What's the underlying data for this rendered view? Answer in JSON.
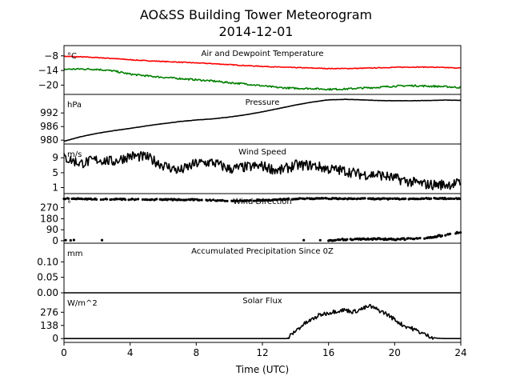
{
  "title_line1": "AO&SS Building Tower Meteorogram",
  "title_line2": "2014-12-01",
  "xlabel": "Time (UTC)",
  "chart_data": {
    "type": "line",
    "x_range": [
      0,
      24
    ],
    "x_ticks": [
      0,
      4,
      8,
      12,
      16,
      20,
      24
    ],
    "x_tick_labels": [
      "0",
      "4",
      "8",
      "12",
      "16",
      "20",
      "24"
    ],
    "panels": [
      {
        "id": "temp",
        "title": "Air and Dewpoint Temperature",
        "unit": "°C",
        "ylim": [
          -23.8,
          -3.8
        ],
        "yticks": [
          -8,
          -14,
          -20
        ],
        "ytick_labels": [
          "−8",
          "−14",
          "−20"
        ],
        "series": [
          {
            "color": "#ff0000",
            "type": "line",
            "noise": 0.15,
            "x": [
              0,
              1,
              2,
              3,
              4,
              5,
              6,
              7,
              8,
              9,
              10,
              11,
              12,
              13,
              14,
              15,
              16,
              17,
              18,
              19,
              20,
              21,
              22,
              23,
              24
            ],
            "y": [
              -8.2,
              -8.4,
              -8.7,
              -9.1,
              -9.6,
              -10.0,
              -10.3,
              -10.6,
              -10.9,
              -11.2,
              -11.6,
              -12.0,
              -12.3,
              -12.6,
              -12.8,
              -13.0,
              -13.2,
              -13.2,
              -13.1,
              -12.9,
              -12.7,
              -12.6,
              -12.6,
              -12.8,
              -13.0
            ]
          },
          {
            "color": "#008000",
            "type": "line",
            "noise": 0.35,
            "x": [
              0,
              1,
              2,
              3,
              4,
              5,
              6,
              7,
              8,
              9,
              10,
              11,
              12,
              13,
              14,
              15,
              16,
              17,
              18,
              19,
              20,
              21,
              22,
              23,
              24
            ],
            "y": [
              -13.5,
              -13.4,
              -13.5,
              -14.2,
              -15.5,
              -16.2,
              -16.8,
              -17.3,
              -17.8,
              -18.3,
              -19.0,
              -19.5,
              -20.3,
              -21.0,
              -21.3,
              -21.4,
              -21.7,
              -21.6,
              -21.2,
              -20.9,
              -20.4,
              -20.2,
              -20.4,
              -20.6,
              -21.0
            ]
          }
        ]
      },
      {
        "id": "pres",
        "title": "Pressure",
        "unit": "hPa",
        "ylim": [
          978.3,
          1000.2
        ],
        "yticks": [
          980,
          986,
          992
        ],
        "ytick_labels": [
          "980",
          "986",
          "992"
        ],
        "series": [
          {
            "color": "#000000",
            "type": "line",
            "noise": 0.05,
            "x": [
              0,
              1,
              2,
              3,
              4,
              5,
              6,
              7,
              8,
              9,
              10,
              11,
              12,
              13,
              14,
              15,
              16,
              17,
              18,
              19,
              20,
              21,
              22,
              23,
              24
            ],
            "y": [
              979.5,
              981.5,
              983.0,
              984.2,
              985.2,
              986.3,
              987.3,
              988.2,
              988.9,
              989.4,
              990.2,
              991.2,
              992.5,
              994.0,
              995.5,
              996.8,
              997.8,
              998.0,
              997.8,
              997.5,
              997.4,
              997.4,
              997.5,
              997.7,
              997.6
            ]
          }
        ]
      },
      {
        "id": "wspd",
        "title": "Wind Speed",
        "unit": "m/s",
        "ylim": [
          -0.6,
          12.7
        ],
        "yticks": [
          1,
          5,
          9
        ],
        "ytick_labels": [
          "1",
          "5",
          "9"
        ],
        "series": [
          {
            "color": "#000000",
            "type": "line",
            "noise": 1.4,
            "x": [
              0,
              1,
              2,
              3,
              4,
              5,
              6,
              7,
              8,
              9,
              10,
              11,
              12,
              13,
              14,
              15,
              16,
              17,
              18,
              19,
              20,
              21,
              22,
              23,
              24
            ],
            "y": [
              9.0,
              7.5,
              8.5,
              8.0,
              9.5,
              9.2,
              7.0,
              5.5,
              7.5,
              7.8,
              6.0,
              6.5,
              6.8,
              5.5,
              7.0,
              7.0,
              6.0,
              5.5,
              4.5,
              4.5,
              3.5,
              2.5,
              1.8,
              1.8,
              2.2
            ]
          }
        ]
      },
      {
        "id": "wdir",
        "title": "Wind Direction",
        "unit": "°",
        "ylim": [
          -20,
          385
        ],
        "yticks": [
          0,
          90,
          180,
          270
        ],
        "ytick_labels": [
          "0",
          "90",
          "180",
          "270"
        ],
        "series": [
          {
            "color": "#000000",
            "type": "dots",
            "noise": 4,
            "x": [
              0,
              2,
              4,
              6,
              8,
              10,
              12,
              14,
              16,
              17.5,
              20,
              22,
              24
            ],
            "y": [
              345,
              340,
              338,
              336,
              335,
              325,
              330,
              343,
              345,
              343,
              342,
              345,
              345
            ]
          },
          {
            "color": "#000000",
            "type": "dots",
            "noise": 6,
            "x": [
              16,
              17,
              18,
              19,
              20,
              21,
              22,
              23,
              24
            ],
            "y": [
              5,
              10,
              15,
              15,
              12,
              15,
              25,
              45,
              70
            ]
          },
          {
            "color": "#000000",
            "type": "dots",
            "noise": 0,
            "x": [
              0.1,
              0.4,
              0.6,
              2.3,
              14.5,
              15.5
            ],
            "y": [
              5,
              3,
              6,
              5,
              5,
              4
            ]
          }
        ]
      },
      {
        "id": "prec",
        "title": "Accumulated Precipitation Since 0Z",
        "unit": "mm",
        "ylim": [
          0.0,
          0.16
        ],
        "yticks": [
          0.0,
          0.05,
          0.1
        ],
        "ytick_labels": [
          "0.00",
          "0.05",
          "0.10"
        ],
        "series": [
          {
            "color": "#000000",
            "type": "line",
            "noise": 0,
            "x": [
              0,
              24
            ],
            "y": [
              0.0,
              0.0
            ]
          }
        ]
      },
      {
        "id": "solar",
        "title": "Solar Flux",
        "unit": "W/m^2",
        "ylim": [
          -40,
          480
        ],
        "yticks": [
          0,
          138,
          276
        ],
        "ytick_labels": [
          "0",
          "138",
          "276"
        ],
        "series": [
          {
            "color": "#000000",
            "type": "line",
            "noise": 22,
            "x": [
              0,
              13.5,
              14.0,
              14.5,
              15.0,
              15.5,
              16.0,
              16.5,
              17.0,
              17.5,
              18.0,
              18.5,
              19.0,
              19.5,
              20.0,
              20.5,
              21.0,
              21.5,
              22.0,
              22.5,
              23.0,
              24.0
            ],
            "y": [
              0,
              0,
              80,
              150,
              200,
              250,
              270,
              290,
              300,
              280,
              310,
              340,
              300,
              260,
              200,
              140,
              110,
              70,
              30,
              5,
              0,
              0
            ]
          }
        ]
      }
    ]
  }
}
